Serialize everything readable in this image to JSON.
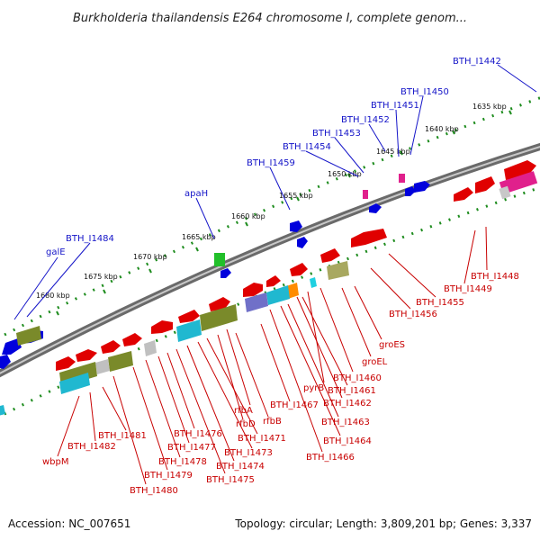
{
  "title": "Burkholderia thailandensis E264 chromosome I, complete genom...",
  "footer": {
    "accession": "Accession: NC_007651",
    "summary": "Topology: circular; Length: 3,809,201 bp; Genes: 3,337"
  },
  "scale_labels": [
    "1635 kbp",
    "1640 kbp",
    "1645 kbp",
    "1650 kbp",
    "1655 kbp",
    "1660 kbp",
    "1665 kbp",
    "1670 kbp",
    "1675 kbp",
    "1680 kbp"
  ],
  "blue_labels": [
    "BTH_I1442",
    "BTH_I1450",
    "BTH_I1451",
    "BTH_I1452",
    "BTH_I1453",
    "BTH_I1454",
    "BTH_I1459",
    "apaH",
    "BTH_I1484",
    "galE"
  ],
  "red_labels": [
    "BTH_I1448",
    "BTH_I1449",
    "BTH_I1455",
    "BTH_I1456",
    "groES",
    "groEL",
    "BTH_I1460",
    "pyrB",
    "BTH_I1461",
    "BTH_I1462",
    "BTH_I1463",
    "BTH_I1464",
    "BTH_I1466",
    "BTH_I1467",
    "rfbA",
    "rfbB",
    "rfbD",
    "BTH_I1471",
    "BTH_I1473",
    "BTH_I1474",
    "BTH_I1475",
    "BTH_I1476",
    "BTH_I1477",
    "BTH_I1478",
    "BTH_I1479",
    "BTH_I1480",
    "BTH_I1481",
    "BTH_I1482",
    "wbpM"
  ],
  "colors": {
    "backbone": "#808080",
    "scale_ticks": "#1e8c1e",
    "blue_gene": "#0000dc",
    "red_gene": "#e00000",
    "olive_gene": "#7a8a2a",
    "cyan_gene": "#20b8d0",
    "magenta_gene": "#e0208c",
    "blue_label_text": "#1414c8",
    "red_label_text": "#c80000"
  }
}
